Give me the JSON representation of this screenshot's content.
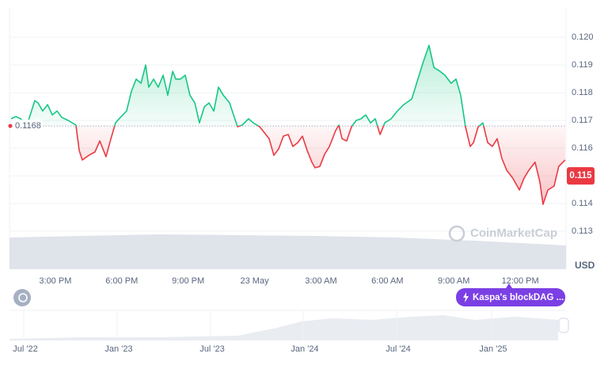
{
  "chart_data": {
    "type": "line",
    "x": [
      13.0,
      13.22,
      13.43,
      13.72,
      14.07,
      14.22,
      14.43,
      14.65,
      14.86,
      15.08,
      15.29,
      15.58,
      15.93,
      16.08,
      16.22,
      16.51,
      16.79,
      17.01,
      17.15,
      17.29,
      17.51,
      17.72,
      17.94,
      18.22,
      18.44,
      18.65,
      18.87,
      19.08,
      19.22,
      19.44,
      19.65,
      19.87,
      20.08,
      20.3,
      20.44,
      20.65,
      20.87,
      21.08,
      21.3,
      21.51,
      21.73,
      21.94,
      22.16,
      22.37,
      22.59,
      22.87,
      23.23,
      23.44,
      23.73,
      23.94,
      24.23,
      24.37,
      24.66,
      24.87,
      25.09,
      25.3,
      25.52,
      25.73,
      25.95,
      26.16,
      26.38,
      26.59,
      26.73,
      26.95,
      27.16,
      27.38,
      27.66,
      27.81,
      27.95,
      28.16,
      28.38,
      28.59,
      28.81,
      29.02,
      29.24,
      29.45,
      29.67,
      29.88,
      30.17,
      30.45,
      30.74,
      31.1,
      31.38,
      31.6,
      31.88,
      32.1,
      32.38,
      32.6,
      32.88,
      33.1,
      33.31,
      33.53,
      33.74,
      33.89,
      34.1,
      34.31,
      34.53,
      34.74,
      34.96,
      35.17,
      35.39,
      35.67,
      35.96,
      36.17,
      36.39,
      36.67,
      36.89,
      37.03,
      37.25,
      37.53,
      37.74,
      38.03
    ],
    "series": [
      {
        "values": [
          0.11706,
          0.11714,
          0.11706,
          0.11683,
          0.11771,
          0.11763,
          0.11734,
          0.11757,
          0.1172,
          0.11734,
          0.11711,
          0.117,
          0.11683,
          0.11591,
          0.11557,
          0.11574,
          0.11586,
          0.11626,
          0.11597,
          0.11569,
          0.11634,
          0.11691,
          0.11711,
          0.11734,
          0.11806,
          0.11849,
          0.11834,
          0.119,
          0.1182,
          0.11849,
          0.1182,
          0.11863,
          0.11791,
          0.11877,
          0.11849,
          0.11849,
          0.11863,
          0.11791,
          0.11763,
          0.11691,
          0.11749,
          0.11763,
          0.11734,
          0.1182,
          0.11791,
          0.11763,
          0.11677,
          0.11683,
          0.11706,
          0.11691,
          0.11677,
          0.11663,
          0.11634,
          0.11574,
          0.11597,
          0.11643,
          0.11649,
          0.11606,
          0.1162,
          0.11643,
          0.11591,
          0.11549,
          0.11529,
          0.11534,
          0.11577,
          0.11606,
          0.11663,
          0.11683,
          0.11634,
          0.11626,
          0.11677,
          0.117,
          0.11706,
          0.1172,
          0.11691,
          0.11706,
          0.11649,
          0.11691,
          0.11706,
          0.11734,
          0.11757,
          0.11777,
          0.11849,
          0.11906,
          0.11971,
          0.11891,
          0.11877,
          0.11863,
          0.11834,
          0.11849,
          0.11791,
          0.11677,
          0.11606,
          0.1162,
          0.11677,
          0.11691,
          0.1162,
          0.11606,
          0.11634,
          0.11563,
          0.1152,
          0.11491,
          0.11449,
          0.11491,
          0.1152,
          0.11549,
          0.11477,
          0.11397,
          0.11449,
          0.11463,
          0.11534,
          0.11557
        ]
      }
    ],
    "up_color": "#16c784",
    "down_color": "#ea3943",
    "baseline": 0.1168,
    "current_price": 0.115,
    "xlim": [
      12.93,
      38.07
    ],
    "xticks": [
      {
        "value": 15,
        "label": "3:00 PM"
      },
      {
        "value": 18,
        "label": "6:00 PM"
      },
      {
        "value": 21,
        "label": "9:00 PM"
      },
      {
        "value": 24,
        "label": "23 May"
      },
      {
        "value": 27,
        "label": "3:00 AM"
      },
      {
        "value": 30,
        "label": "6:00 AM"
      },
      {
        "value": 33,
        "label": "9:00 AM"
      },
      {
        "value": 36,
        "label": "12:00 PM"
      }
    ],
    "ylim": [
      0.11163,
      0.12106
    ],
    "yticks": [
      {
        "value": 0.113,
        "label": "0.113"
      },
      {
        "value": 0.114,
        "label": "0.114"
      },
      {
        "value": 0.115,
        "label": "0.115"
      },
      {
        "value": 0.116,
        "label": "0.116"
      },
      {
        "value": 0.117,
        "label": "0.117"
      },
      {
        "value": 0.118,
        "label": "0.118"
      },
      {
        "value": 0.119,
        "label": "0.119"
      },
      {
        "value": 0.12,
        "label": "0.120"
      }
    ],
    "grid": true,
    "unit": "USD",
    "watermark": "CoinMarketCap"
  },
  "navigator": {
    "labels": [
      "Jul '22",
      "Jan '23",
      "Jul '23",
      "Jan '24",
      "Jul '24",
      "Jan '25"
    ]
  },
  "badge": "Kaspa's blockDAG ..."
}
